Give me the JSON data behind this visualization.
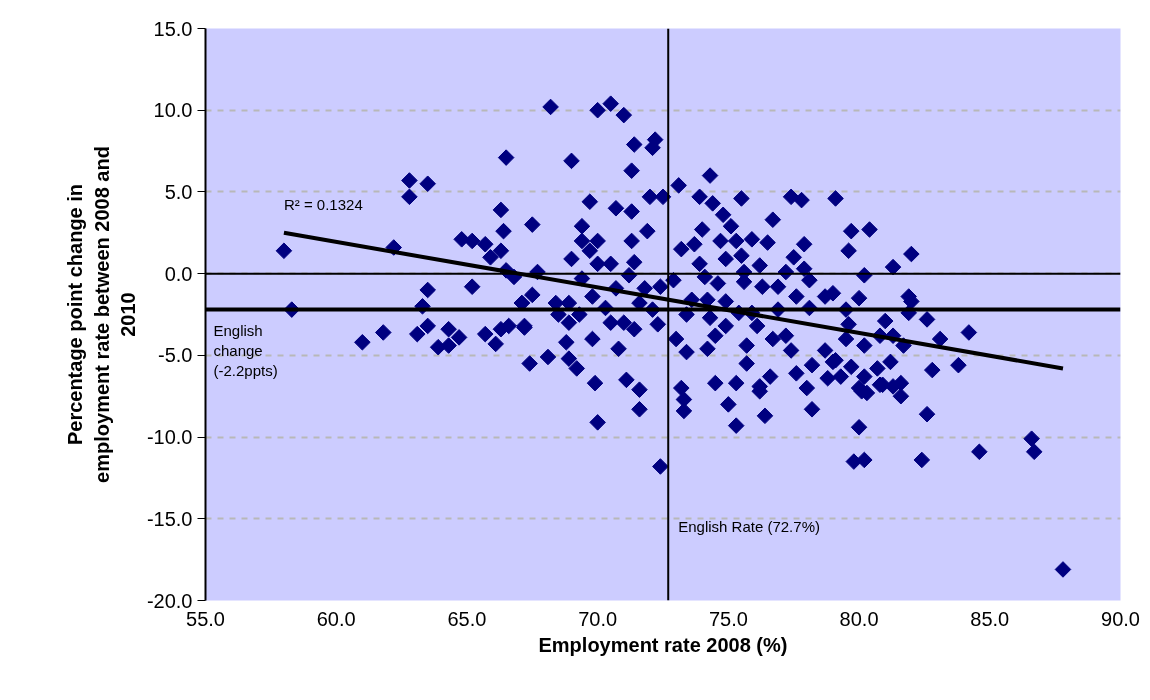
{
  "chart_data": {
    "type": "scatter",
    "xlabel": "Employment rate 2008 (%)",
    "ylabel": "Percentage point change in employment rate between 2008 and 2010",
    "xlim": [
      55,
      90
    ],
    "ylim": [
      -20,
      15
    ],
    "xticks": [
      {
        "value": 55,
        "label": "55.0"
      },
      {
        "value": 60,
        "label": "60.0"
      },
      {
        "value": 65,
        "label": "65.0"
      },
      {
        "value": 70,
        "label": "70.0"
      },
      {
        "value": 75,
        "label": "75.0"
      },
      {
        "value": 80,
        "label": "80.0"
      },
      {
        "value": 85,
        "label": "85.0"
      },
      {
        "value": 90,
        "label": "90.0"
      }
    ],
    "yticks": [
      {
        "value": 15,
        "label": "15.0"
      },
      {
        "value": 10,
        "label": "10.0"
      },
      {
        "value": 5,
        "label": "5.0"
      },
      {
        "value": 0,
        "label": "0.0"
      },
      {
        "value": -5,
        "label": "-5.0"
      },
      {
        "value": -10,
        "label": "-10.0"
      },
      {
        "value": -15,
        "label": "-15.0"
      },
      {
        "value": -20,
        "label": "-20.0"
      }
    ],
    "grid": "y",
    "series": [
      {
        "color": "#000080",
        "marker": "diamond",
        "x": [
          66.5,
          62.8,
          62.8,
          63.5,
          66.3,
          66.4,
          64.8,
          65.2,
          65.7,
          66.3,
          65.9,
          62.2,
          58.0,
          58.3,
          63.5,
          65.2,
          63.3,
          61.0,
          61.8,
          63.1,
          63.5,
          63.9,
          64.3,
          64.3,
          64.7,
          65.7,
          66.1,
          66.3,
          66.6,
          66.5,
          66.8,
          67.1,
          67.2,
          68.2,
          70.0,
          70.5,
          71.0,
          71.4,
          72.2,
          72.1,
          69.0,
          71.3,
          74.3,
          73.1,
          72.0,
          72.5,
          69.7,
          70.7,
          71.3,
          73.9,
          74.4,
          75.5,
          77.4,
          77.8,
          79.1,
          67.5,
          69.4,
          71.9,
          74.8,
          75.1,
          76.7,
          74.0,
          69.4,
          70.0,
          71.3,
          69.7,
          69.0,
          70.0,
          70.5,
          71.4,
          73.2,
          73.7,
          74.7,
          75.3,
          75.9,
          76.5,
          77.9,
          74.9,
          75.5,
          76.2,
          77.5,
          77.9,
          73.9,
          74.1,
          72.9,
          71.2,
          69.4,
          67.7,
          67.5,
          67.1,
          68.4,
          68.9,
          69.8,
          70.7,
          71.8,
          72.4,
          70.3,
          71.6,
          72.1,
          68.5,
          69.3,
          68.9,
          67.2,
          70.5,
          71.0,
          72.3,
          73.4,
          74.3,
          74.9,
          74.9,
          74.2,
          73.6,
          74.6,
          75.4,
          75.9,
          76.1,
          76.9,
          76.9,
          77.6,
          78.1,
          78.7,
          79.0,
          75.6,
          76.3,
          78.1,
          77.2,
          75.6,
          68.8,
          69.8,
          71.4,
          70.8,
          67.4,
          68.1,
          68.9,
          69.2,
          69.9,
          71.1,
          71.6,
          73.0,
          73.4,
          74.2,
          74.5,
          74.5,
          75.3,
          75.7,
          75.7,
          76.2,
          76.6,
          76.7,
          77.2,
          77.4,
          77.6,
          78.0,
          78.2,
          78.7,
          79.0,
          78.8,
          73.2,
          79.7,
          80.4,
          79.6,
          82.0,
          81.3,
          80.2,
          80.0,
          81.9,
          82.0,
          81.9,
          82.6,
          81.0,
          79.5,
          79.6,
          80.8,
          81.3,
          81.7,
          80.2,
          79.5,
          83.1,
          84.2,
          82.8,
          83.8,
          79.1,
          79.7,
          81.2,
          80.7,
          81.6,
          80.2,
          79.3,
          80.9,
          80.1,
          71.6,
          70.0,
          72.4,
          73.3,
          73.3,
          75.0,
          75.3,
          76.2,
          76.4,
          78.2,
          80.0,
          80.3,
          80.8,
          81.3,
          81.6,
          80.0,
          79.8,
          80.2,
          82.4,
          82.6,
          84.6,
          86.6,
          86.7,
          87.8
        ],
        "values": [
          7.1,
          5.7,
          4.7,
          5.5,
          3.9,
          2.6,
          2.1,
          2.0,
          1.8,
          1.4,
          1.0,
          1.6,
          1.4,
          -2.2,
          -1.0,
          -0.8,
          -2.0,
          -4.2,
          -3.6,
          -3.7,
          -3.2,
          -4.5,
          -4.4,
          -3.4,
          -3.9,
          -3.7,
          -4.3,
          -3.4,
          -3.2,
          0.2,
          -0.2,
          -1.8,
          -3.2,
          10.2,
          10.0,
          10.4,
          9.7,
          7.9,
          8.2,
          7.7,
          6.9,
          6.3,
          6.0,
          5.4,
          4.7,
          4.7,
          4.4,
          4.0,
          3.8,
          4.7,
          4.3,
          4.6,
          4.7,
          4.5,
          4.6,
          3.0,
          2.9,
          2.6,
          3.6,
          2.9,
          3.3,
          2.7,
          2.0,
          2.0,
          2.0,
          1.4,
          0.9,
          0.6,
          0.6,
          0.7,
          1.5,
          1.8,
          2.0,
          2.0,
          2.1,
          1.9,
          1.8,
          0.9,
          1.1,
          0.5,
          1.0,
          0.3,
          0.6,
          -0.2,
          -0.4,
          -0.1,
          -0.3,
          0.1,
          -1.3,
          -1.8,
          -1.8,
          -1.8,
          -1.4,
          -0.9,
          -0.9,
          -0.8,
          -2.1,
          -1.8,
          -2.2,
          -2.5,
          -2.5,
          -3.0,
          -3.3,
          -3.0,
          -3.0,
          -3.1,
          -2.5,
          -2.7,
          -1.7,
          -3.2,
          -1.6,
          -1.6,
          -0.6,
          -2.4,
          -2.4,
          -3.2,
          -2.2,
          -0.8,
          -1.4,
          -2.1,
          -1.4,
          -1.2,
          -0.5,
          -0.8,
          -0.4,
          0.1,
          0.1,
          -4.2,
          -4.0,
          -3.4,
          -4.6,
          -5.5,
          -5.1,
          -5.2,
          -5.8,
          -6.7,
          -6.5,
          -7.1,
          -4.0,
          -4.8,
          -4.6,
          -3.8,
          -6.7,
          -6.7,
          -4.4,
          -5.5,
          -6.9,
          -6.3,
          -4.0,
          -3.8,
          -4.7,
          -6.1,
          -7.0,
          -5.6,
          -4.7,
          -5.4,
          -6.4,
          -7.0,
          2.6,
          2.7,
          1.4,
          1.2,
          0.4,
          -0.1,
          -1.5,
          -1.4,
          -1.7,
          -2.4,
          -2.8,
          -2.9,
          -2.2,
          -3.1,
          -3.8,
          -3.8,
          -4.4,
          -4.4,
          -4.0,
          -4.0,
          -3.6,
          -5.9,
          -5.6,
          -5.3,
          -5.7,
          -5.4,
          -5.8,
          -6.7,
          -6.3,
          -6.3,
          -6.8,
          -7.2,
          -8.3,
          -9.1,
          -11.8,
          -7.7,
          -8.4,
          -8.0,
          -9.3,
          -7.2,
          -8.7,
          -8.3,
          -7.0,
          -7.3,
          -6.8,
          -6.9,
          -7.5,
          -9.4,
          -11.5,
          -11.4,
          -11.4,
          -8.6,
          -10.9,
          -10.1,
          -10.9,
          -18.1
        ]
      },
      {
        "type": "line",
        "color": "#000000",
        "x": [
          58.0,
          87.8
        ],
        "values": [
          2.5,
          -5.8
        ]
      }
    ],
    "ref_lines": [
      {
        "axis": "y",
        "value": 0,
        "label": null,
        "color": "#000000"
      },
      {
        "axis": "x",
        "value": 72.7,
        "label": "English Rate (72.7%)",
        "color": "#000000"
      },
      {
        "axis": "y",
        "value": -2.2,
        "label": "English change (-2.2ppts)",
        "color": "#000000"
      }
    ],
    "annotations": [
      {
        "text": "R² = 0.1324",
        "x": 58.0,
        "y": 2.5
      }
    ]
  }
}
